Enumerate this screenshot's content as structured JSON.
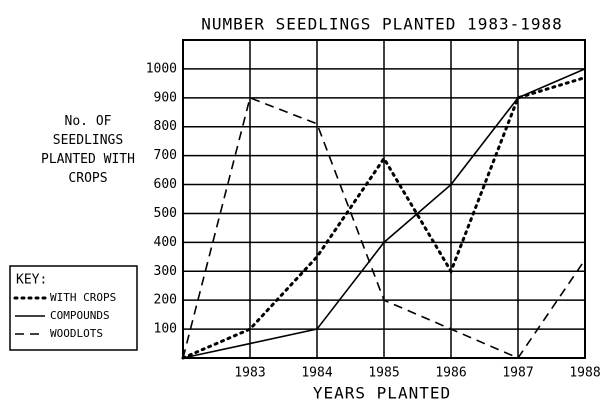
{
  "chart_data": {
    "type": "line",
    "title": "NUMBER SEEDLINGS PLANTED 1983-1988",
    "y_label": "No. OF SEEDLINGS PLANTED WITH CROPS",
    "x_label": "YEARS PLANTED",
    "x": [
      1982,
      1983,
      1984,
      1985,
      1986,
      1987,
      1988
    ],
    "xlim": [
      1982,
      1988
    ],
    "xticks": [
      1983,
      1984,
      1985,
      1986,
      1987,
      1988
    ],
    "ylim": [
      0,
      1100
    ],
    "yticks": [
      100,
      200,
      300,
      400,
      500,
      600,
      700,
      800,
      900,
      1000
    ],
    "grid": true,
    "legend_title": "KEY:",
    "legend_position": "lower left",
    "series": [
      {
        "name": "WITH CROPS",
        "color": "#000000",
        "style": "dotted",
        "values": [
          0,
          100,
          350,
          690,
          300,
          900,
          970
        ]
      },
      {
        "name": "COMPOUNDS",
        "color": "#000000",
        "style": "solid",
        "values": [
          0,
          50,
          100,
          400,
          600,
          900,
          1000
        ]
      },
      {
        "name": "WOODLOTS",
        "color": "#000000",
        "style": "dashed",
        "values": [
          0,
          900,
          810,
          200,
          100,
          0,
          340
        ]
      }
    ]
  }
}
